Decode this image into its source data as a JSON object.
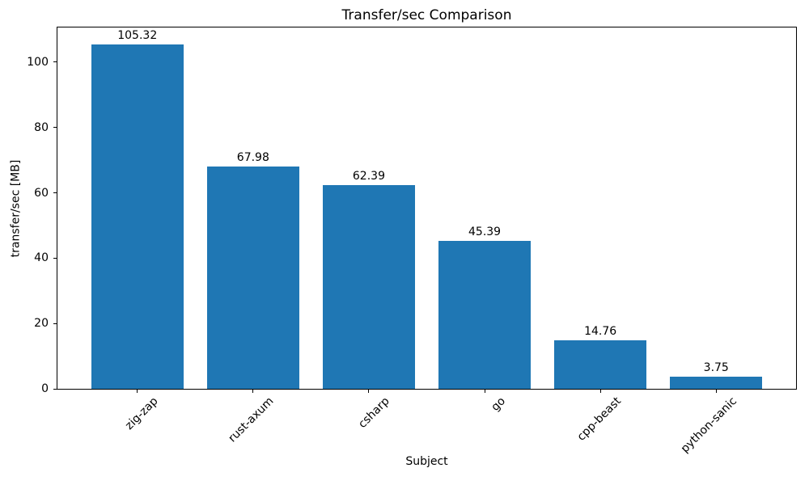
{
  "figure": {
    "background": "#ffffff",
    "text_color": "#000000"
  },
  "chart_data": {
    "type": "bar",
    "title": "Transfer/sec Comparison",
    "xlabel": "Subject",
    "ylabel": "transfer/sec [MB]",
    "categories": [
      "zig-zap",
      "rust-axum",
      "csharp",
      "go",
      "cpp-beast",
      "python-sanic"
    ],
    "values": [
      105.32,
      67.98,
      62.39,
      45.39,
      14.76,
      3.75
    ],
    "value_labels": [
      "105.32",
      "67.98",
      "62.39",
      "45.39",
      "14.76",
      "3.75"
    ],
    "bar_color": "#1f77b4",
    "ylim": [
      0,
      110.6
    ],
    "yticks": [
      0,
      20,
      40,
      60,
      80,
      100
    ],
    "grid": false,
    "legend": null,
    "x_tick_rotation_deg": 45,
    "bar_relative_width": 0.8,
    "x_edge_padding_units": 0.69
  }
}
